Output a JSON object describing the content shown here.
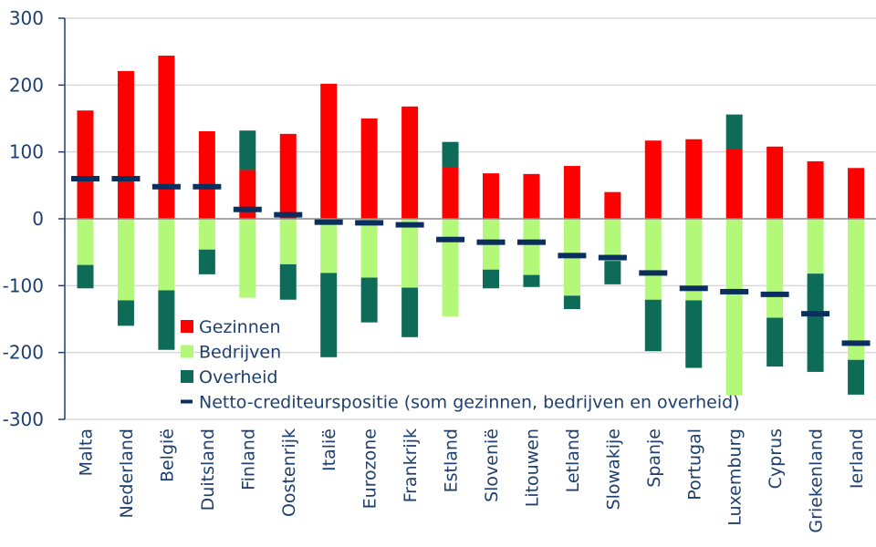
{
  "chart_data": {
    "type": "bar",
    "stacked": true,
    "title": "",
    "xlabel": "",
    "ylabel": "",
    "ylim": [
      -300,
      300
    ],
    "yticks": [
      300,
      200,
      100,
      0,
      -100,
      -200,
      -300
    ],
    "ytick_labels": [
      "300",
      "200",
      "100",
      "0",
      "-100",
      "-200",
      "-300"
    ],
    "grid": true,
    "legend_position": "bottom-left (inside)",
    "categories": [
      "Malta",
      "Nederland",
      "België",
      "Duitsland",
      "Finland",
      "Oostenrijk",
      "Italië",
      "Eurozone",
      "Frankrijk",
      "Estland",
      "Slovenië",
      "Litouwen",
      "Letland",
      "Slowakije",
      "Spanje",
      "Portugal",
      "Luxemburg",
      "Cyprus",
      "Griekenland",
      "Ierland"
    ],
    "series": [
      {
        "name": "Gezinnen",
        "color": "#FF0000",
        "kind": "bar",
        "values": [
          162,
          221,
          244,
          131,
          73,
          127,
          202,
          150,
          168,
          77,
          68,
          67,
          79,
          40,
          117,
          119,
          105,
          108,
          86,
          76
        ]
      },
      {
        "name": "Bedrijven",
        "color": "#B3F878",
        "kind": "bar",
        "values": [
          -69,
          -122,
          -107,
          -46,
          -118,
          -68,
          -81,
          -88,
          -103,
          -146,
          -76,
          -84,
          -115,
          -63,
          -121,
          -122,
          -264,
          -148,
          -82,
          -211
        ]
      },
      {
        "name": "Overheid",
        "color": "#0E6B58",
        "kind": "bar",
        "values": [
          -35,
          -38,
          -89,
          -37,
          59,
          -53,
          -126,
          -67,
          -74,
          38,
          -28,
          -18,
          -20,
          -35,
          -77,
          -101,
          51,
          -73,
          -147,
          -52
        ]
      },
      {
        "name": "Netto-crediteurspositie (som gezinnen, bedrijven en overheid)",
        "color": "#0A2F5E",
        "kind": "marker",
        "values": [
          60,
          60,
          48,
          48,
          14,
          6,
          -5,
          -6,
          -9,
          -31,
          -35,
          -35,
          -55,
          -58,
          -81,
          -104,
          -109,
          -113,
          -142,
          -186
        ]
      }
    ]
  },
  "legend": {
    "items": [
      {
        "label": "Gezinnen",
        "color": "#FF0000",
        "shape": "square"
      },
      {
        "label": "Bedrijven",
        "color": "#B3F878",
        "shape": "square"
      },
      {
        "label": "Overheid",
        "color": "#0E6B58",
        "shape": "square"
      },
      {
        "label": "Netto-crediteurspositie (som gezinnen, bedrijven en overheid)",
        "color": "#0A2F5E",
        "shape": "dash"
      }
    ]
  },
  "colors": {
    "axis": "#1F3F6E",
    "grid": "#D9D9D9",
    "zero_line": "#8C8C8C",
    "text": "#1F3F6E"
  }
}
